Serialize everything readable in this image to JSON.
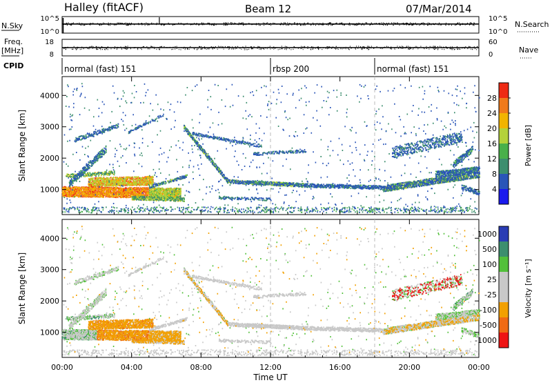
{
  "header": {
    "station": "Halley (fitACF)",
    "beam": "Beam 12",
    "date": "07/Mar/2014"
  },
  "nsky_panel": {
    "left_label": "N.Sky",
    "right_label": "N.Search",
    "left_ticks": [
      "10^5",
      "10^0"
    ],
    "right_ticks": [
      "10^5",
      "10^0"
    ],
    "level_fraction": 0.55
  },
  "freq_panel": {
    "left_label_1": "Freq.",
    "left_label_2": "[MHz]",
    "left_ticks": [
      "18",
      "8"
    ],
    "right_label": "Nave",
    "right_ticks": [
      "60",
      "0"
    ],
    "level_fraction": 0.5
  },
  "cpid": {
    "label": "CPID",
    "modes": [
      {
        "label": "normal (fast) 151",
        "start": 0
      },
      {
        "label": "rbsp 200",
        "start": 12
      },
      {
        "label": "normal (fast) 151",
        "start": 18
      }
    ]
  },
  "chart_data": [
    {
      "type": "heatmap",
      "ylabel": "Slant Range [km]",
      "yticks": [
        1000,
        2000,
        3000,
        4000
      ],
      "ylim": [
        200,
        4600
      ],
      "xlim": [
        0,
        24
      ],
      "colorbar": {
        "label": "Power [dB]",
        "ticks": [
          "4",
          "8",
          "12",
          "16",
          "20",
          "24",
          "28"
        ],
        "colors": [
          "#1a1aee",
          "#2a55b8",
          "#3c8e6e",
          "#49b04a",
          "#b4d23a",
          "#f2b400",
          "#f07a1a",
          "#ee2a14"
        ],
        "range": [
          0,
          32
        ]
      }
    },
    {
      "type": "heatmap",
      "ylabel": "Slant Range [km]",
      "yticks": [
        1000,
        2000,
        3000,
        4000
      ],
      "ylim": [
        200,
        4600
      ],
      "xlim": [
        0,
        24
      ],
      "xlabel": "Time UT",
      "xticks": [
        "00:00",
        "04:00",
        "08:00",
        "12:00",
        "16:00",
        "20:00",
        "00:00"
      ],
      "colorbar": {
        "label": "Velocity [m s⁻¹]",
        "ticks": [
          "1000",
          "500",
          "100",
          "25",
          "-25",
          "-100",
          "-500",
          "-1000"
        ],
        "colors": [
          "#2a3cb4",
          "#3c8e6e",
          "#52c03a",
          "#c8c8c8",
          "#c8c8c8",
          "#f2a000",
          "#f06a14",
          "#ee1414"
        ]
      }
    }
  ]
}
